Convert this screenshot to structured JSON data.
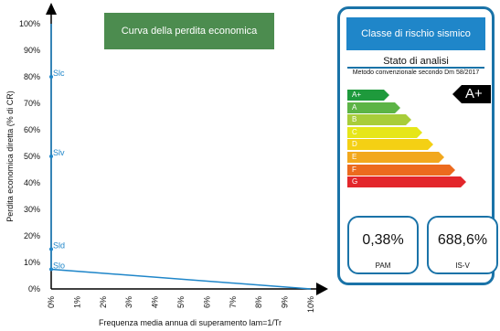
{
  "chart_data": {
    "type": "line",
    "title": "Curva della perdita economica",
    "xlabel": "Frequenza media annua di superamento lam=1/Tr",
    "ylabel": "Perdita economica diretta (% di CR)",
    "xlim": [
      0,
      10
    ],
    "ylim": [
      0,
      100
    ],
    "x_ticks": [
      "0%",
      "1%",
      "2%",
      "3%",
      "4%",
      "5%",
      "6%",
      "7%",
      "8%",
      "9%",
      "10%"
    ],
    "y_ticks": [
      "0%",
      "10%",
      "20%",
      "30%",
      "40%",
      "50%",
      "60%",
      "70%",
      "80%",
      "90%",
      "100%"
    ],
    "series": [
      {
        "points": [
          {
            "x": 0,
            "y": 100
          },
          {
            "x": 0,
            "y": 80,
            "label": "Slc"
          },
          {
            "x": 0,
            "y": 50,
            "label": "Slv"
          },
          {
            "x": 0,
            "y": 15,
            "label": "Sld"
          },
          {
            "x": 0,
            "y": 7.4,
            "label": "Slo"
          },
          {
            "x": 10,
            "y": 0
          }
        ]
      }
    ],
    "line_color": "#1f86c9"
  },
  "panel": {
    "header": "Classe di rischio sismico",
    "state": "Stato di analisi",
    "method": "Metodo convenzionale secondo Dm 58/2017",
    "risk_class": "A+",
    "classes": [
      {
        "label": "A+",
        "color": "#1e9a3c"
      },
      {
        "label": "A",
        "color": "#5cb446"
      },
      {
        "label": "B",
        "color": "#a8cd3a"
      },
      {
        "label": "C",
        "color": "#e6e619"
      },
      {
        "label": "D",
        "color": "#f4d014"
      },
      {
        "label": "E",
        "color": "#f2a81d"
      },
      {
        "label": "F",
        "color": "#ec6a1e"
      },
      {
        "label": "G",
        "color": "#e3262b"
      }
    ],
    "pam_value": "0,38%",
    "pam_label": "PAM",
    "isv_value": "688,6%",
    "isv_label": "IS-V"
  }
}
